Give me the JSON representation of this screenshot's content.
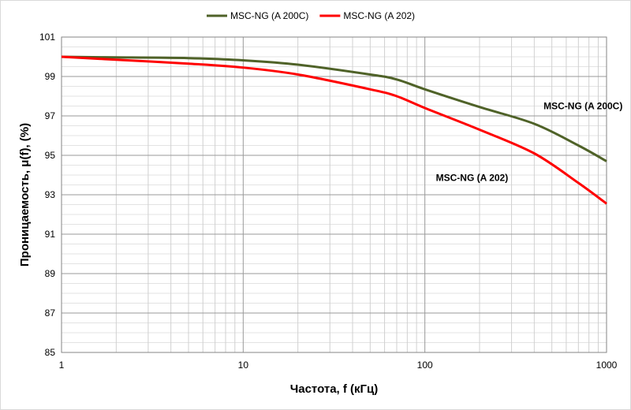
{
  "chart_data": {
    "type": "line",
    "title": "",
    "xlabel": "Частота, f (кГц)",
    "ylabel": "Проницаемость, μ(f), (%)",
    "xscale": "log",
    "xlim": [
      1,
      1000
    ],
    "ylim": [
      85,
      101
    ],
    "xticks": [
      1,
      10,
      100,
      1000
    ],
    "xtick_labels": [
      "1",
      "10",
      "100",
      "1000"
    ],
    "yticks": [
      85,
      87,
      89,
      91,
      93,
      95,
      97,
      99,
      101
    ],
    "ytick_labels": [
      "85",
      "87",
      "89",
      "91",
      "93",
      "95",
      "97",
      "99",
      "101"
    ],
    "grid": true,
    "legend_position": "top-center",
    "series": [
      {
        "name": "MSC-NG (A 200C)",
        "color": "#4f6228",
        "x": [
          1,
          2,
          5,
          10,
          20,
          50,
          70,
          100,
          200,
          400,
          700,
          1000
        ],
        "y": [
          100.0,
          99.97,
          99.93,
          99.82,
          99.6,
          99.1,
          98.85,
          98.35,
          97.45,
          96.6,
          95.5,
          94.7
        ]
      },
      {
        "name": "MSC-NG (A 202)",
        "color": "#ff0000",
        "x": [
          1,
          2,
          5,
          10,
          20,
          50,
          70,
          100,
          200,
          400,
          700,
          1000
        ],
        "y": [
          100.0,
          99.85,
          99.65,
          99.45,
          99.1,
          98.35,
          98.0,
          97.4,
          96.3,
          95.1,
          93.6,
          92.55
        ]
      }
    ],
    "annotations": [
      {
        "text": "MSC-NG (A 200C)",
        "x": 450,
        "y": 97.35,
        "series": 0
      },
      {
        "text": "MSC-NG (A 202)",
        "x": 115,
        "y": 93.7,
        "series": 1
      }
    ]
  }
}
